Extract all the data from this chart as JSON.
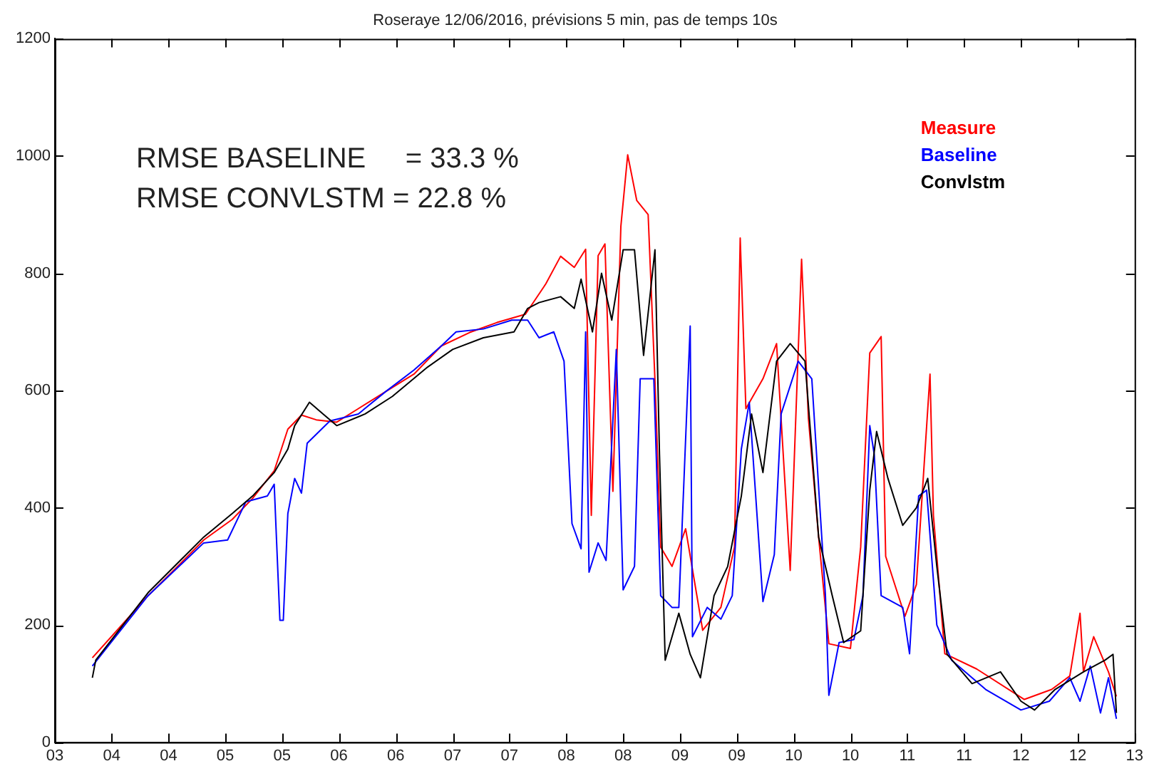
{
  "chart_data": {
    "type": "line",
    "title": "Roseraye 12/06/2016, prévisions 5 min, pas de temps 10s",
    "annotations": [
      "RMSE BASELINE     = 33.3 %",
      "RMSE CONVLSTM = 22.8 %"
    ],
    "xlim": [
      3.5,
      13.0
    ],
    "ylim": [
      0,
      1200
    ],
    "yticks": [
      0,
      200,
      400,
      600,
      800,
      1000,
      1200
    ],
    "xticks": [
      {
        "value": 3.5,
        "label": "03"
      },
      {
        "value": 4.0,
        "label": "04"
      },
      {
        "value": 4.5,
        "label": "04"
      },
      {
        "value": 5.0,
        "label": "05"
      },
      {
        "value": 5.5,
        "label": "05"
      },
      {
        "value": 6.0,
        "label": "06"
      },
      {
        "value": 6.5,
        "label": "06"
      },
      {
        "value": 7.0,
        "label": "07"
      },
      {
        "value": 7.5,
        "label": "07"
      },
      {
        "value": 8.0,
        "label": "08"
      },
      {
        "value": 8.5,
        "label": "08"
      },
      {
        "value": 9.0,
        "label": "09"
      },
      {
        "value": 9.5,
        "label": "09"
      },
      {
        "value": 10.0,
        "label": "10"
      },
      {
        "value": 10.5,
        "label": "10"
      },
      {
        "value": 11.0,
        "label": "11"
      },
      {
        "value": 11.5,
        "label": "11"
      },
      {
        "value": 12.0,
        "label": "12"
      },
      {
        "value": 12.5,
        "label": "12"
      },
      {
        "value": 13.0,
        "label": "13"
      }
    ],
    "legend": "top right",
    "marker": "none",
    "line_style": "solid",
    "series": [
      {
        "name": "Measure",
        "color": "#ff0000",
        "x": [
          3.83,
          4.08,
          4.32,
          4.57,
          4.81,
          5.06,
          5.24,
          5.43,
          5.55,
          5.67,
          5.8,
          5.98,
          6.17,
          6.41,
          6.66,
          6.9,
          7.15,
          7.39,
          7.64,
          7.82,
          7.95,
          8.07,
          8.17,
          8.22,
          8.28,
          8.34,
          8.41,
          8.48,
          8.54,
          8.62,
          8.72,
          8.78,
          8.83,
          8.93,
          9.05,
          9.2,
          9.36,
          9.48,
          9.53,
          9.58,
          9.73,
          9.85,
          9.97,
          10.07,
          10.13,
          10.22,
          10.31,
          10.5,
          10.59,
          10.67,
          10.77,
          10.81,
          10.98,
          11.08,
          11.2,
          11.23,
          11.33,
          11.61,
          12.03,
          12.27,
          12.43,
          12.52,
          12.55,
          12.64,
          12.77,
          12.84
        ],
        "values": [
          144,
          198,
          250,
          298,
          345,
          380,
          416,
          463,
          534,
          558,
          550,
          546,
          569,
          598,
          628,
          676,
          699,
          716,
          730,
          782,
          829,
          810,
          841,
          387,
          830,
          850,
          428,
          880,
          1002,
          924,
          900,
          617,
          333,
          300,
          364,
          191,
          230,
          333,
          860,
          569,
          620,
          680,
          293,
          824,
          553,
          350,
          168,
          160,
          333,
          664,
          692,
          317,
          215,
          269,
          628,
          387,
          151,
          125,
          73,
          90,
          113,
          220,
          120,
          180,
          120,
          78
        ]
      },
      {
        "name": "Baseline",
        "color": "#0000ff",
        "x": [
          3.83,
          4.32,
          4.81,
          5.02,
          5.18,
          5.37,
          5.43,
          5.48,
          5.51,
          5.55,
          5.61,
          5.67,
          5.72,
          5.92,
          6.17,
          6.41,
          6.66,
          6.9,
          7.03,
          7.27,
          7.52,
          7.66,
          7.76,
          7.89,
          7.98,
          8.05,
          8.13,
          8.17,
          8.2,
          8.28,
          8.35,
          8.44,
          8.5,
          8.6,
          8.65,
          8.77,
          8.83,
          8.93,
          8.99,
          9.09,
          9.11,
          9.24,
          9.36,
          9.46,
          9.54,
          9.61,
          9.73,
          9.83,
          9.89,
          10.04,
          10.16,
          10.28,
          10.31,
          10.4,
          10.53,
          10.61,
          10.67,
          10.71,
          10.77,
          10.96,
          11.02,
          11.1,
          11.17,
          11.26,
          11.39,
          11.69,
          12.0,
          12.25,
          12.43,
          12.52,
          12.61,
          12.7,
          12.77,
          12.84
        ],
        "values": [
          130,
          250,
          340,
          345,
          410,
          420,
          440,
          208,
          208,
          390,
          450,
          425,
          510,
          548,
          560,
          598,
          635,
          676,
          700,
          705,
          720,
          720,
          690,
          700,
          650,
          373,
          330,
          700,
          290,
          340,
          310,
          670,
          260,
          300,
          620,
          620,
          250,
          230,
          230,
          710,
          180,
          230,
          210,
          250,
          500,
          580,
          240,
          320,
          560,
          650,
          620,
          250,
          80,
          170,
          175,
          250,
          540,
          490,
          250,
          230,
          151,
          420,
          430,
          200,
          140,
          90,
          55,
          70,
          110,
          70,
          130,
          50,
          110,
          40
        ]
      },
      {
        "name": "Convlstm",
        "color": "#000000",
        "x": [
          3.83,
          3.86,
          4.32,
          4.81,
          5.06,
          5.24,
          5.43,
          5.55,
          5.61,
          5.74,
          5.86,
          5.98,
          6.23,
          6.47,
          6.78,
          7.0,
          7.27,
          7.54,
          7.66,
          7.76,
          7.95,
          8.07,
          8.13,
          8.23,
          8.31,
          8.4,
          8.5,
          8.6,
          8.68,
          8.78,
          8.82,
          8.87,
          8.99,
          9.09,
          9.18,
          9.3,
          9.42,
          9.54,
          9.63,
          9.73,
          9.85,
          9.97,
          10.1,
          10.16,
          10.22,
          10.34,
          10.44,
          10.59,
          10.67,
          10.73,
          10.83,
          10.96,
          11.08,
          11.18,
          11.26,
          11.35,
          11.57,
          11.82,
          12.0,
          12.12,
          12.3,
          12.55,
          12.74,
          12.81,
          12.84
        ],
        "values": [
          110,
          140,
          255,
          350,
          390,
          420,
          460,
          500,
          540,
          580,
          560,
          540,
          560,
          590,
          640,
          670,
          690,
          700,
          740,
          750,
          760,
          740,
          790,
          700,
          800,
          720,
          840,
          840,
          660,
          840,
          490,
          140,
          220,
          150,
          110,
          250,
          300,
          420,
          560,
          460,
          650,
          680,
          650,
          500,
          350,
          250,
          170,
          190,
          430,
          530,
          450,
          370,
          400,
          450,
          300,
          150,
          100,
          120,
          70,
          55,
          90,
          120,
          140,
          150,
          50
        ]
      }
    ]
  }
}
